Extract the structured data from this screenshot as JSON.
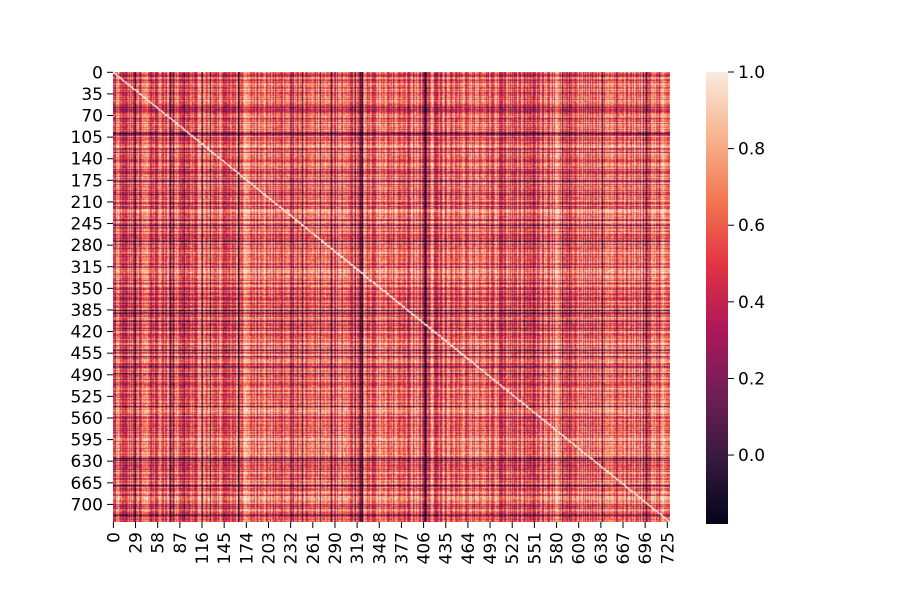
{
  "chart_data": {
    "type": "heatmap",
    "title": "",
    "xlabel": "",
    "ylabel": "",
    "n_rows": 729,
    "n_cols": 729,
    "x_ticks": [
      "0",
      "29",
      "58",
      "87",
      "116",
      "145",
      "174",
      "203",
      "232",
      "261",
      "290",
      "319",
      "348",
      "377",
      "406",
      "435",
      "464",
      "493",
      "522",
      "551",
      "580",
      "609",
      "638",
      "667",
      "696",
      "725"
    ],
    "y_ticks": [
      "0",
      "35",
      "70",
      "105",
      "140",
      "175",
      "210",
      "245",
      "280",
      "315",
      "350",
      "385",
      "420",
      "455",
      "490",
      "525",
      "560",
      "595",
      "630",
      "665",
      "700"
    ],
    "diagonal_value": 1.0,
    "typical_value_range": [
      0.4,
      0.8
    ],
    "dark_rows": [
      98,
      175,
      385,
      625
    ],
    "dark_cols": [
      28,
      92,
      325,
      385,
      408,
      550
    ],
    "colorbar": {
      "vmin": -0.18,
      "vmax": 1.0,
      "ticks": [
        "0.0",
        "0.2",
        "0.4",
        "0.6",
        "0.8",
        "1.0"
      ],
      "tick_values": [
        0.0,
        0.2,
        0.4,
        0.6,
        0.8,
        1.0
      ],
      "colormap": "rocket",
      "stops": [
        "#03051a",
        "#36193e",
        "#701f57",
        "#ad1759",
        "#e13342",
        "#f37651",
        "#f6b48f",
        "#faebdd"
      ]
    }
  }
}
